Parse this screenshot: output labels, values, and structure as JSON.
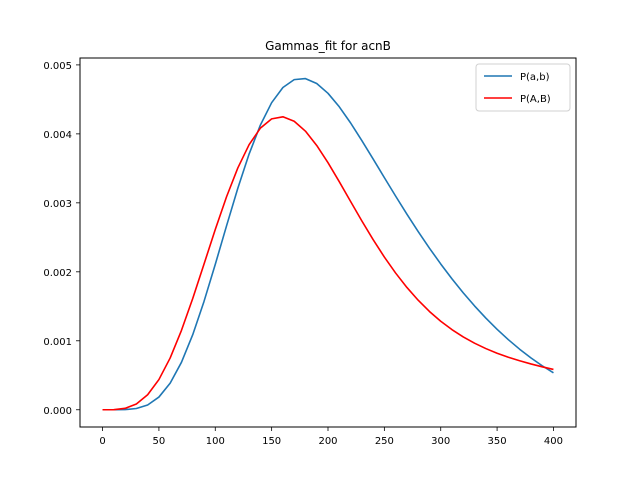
{
  "chart_data": {
    "type": "line",
    "title": "Gammas_fit for acnB",
    "xlabel": "",
    "ylabel": "",
    "xlim": [
      -20,
      420
    ],
    "ylim": [
      -0.00025,
      0.0051
    ],
    "x_ticks": [
      0,
      50,
      100,
      150,
      200,
      250,
      300,
      350,
      400
    ],
    "x_tick_labels": [
      "0",
      "50",
      "100",
      "150",
      "200",
      "250",
      "300",
      "350",
      "400"
    ],
    "y_ticks": [
      0.0,
      0.001,
      0.002,
      0.003,
      0.004,
      0.005
    ],
    "y_tick_labels": [
      "0.000",
      "0.001",
      "0.002",
      "0.003",
      "0.004",
      "0.005"
    ],
    "grid": false,
    "legend_position": "top-right",
    "x": [
      0,
      10,
      20,
      30,
      40,
      50,
      60,
      70,
      80,
      90,
      100,
      110,
      120,
      130,
      140,
      150,
      160,
      170,
      180,
      190,
      200,
      210,
      220,
      230,
      240,
      250,
      260,
      270,
      280,
      290,
      300,
      310,
      320,
      330,
      340,
      350,
      360,
      370,
      380,
      390,
      400
    ],
    "series": [
      {
        "name": "P(a,b)",
        "color": "#1f77b4",
        "values": [
          0.0,
          1e-07,
          2.3e-06,
          1.58e-05,
          6e-05,
          0.0001593,
          0.0003339,
          0.0005951,
          0.0009411,
          0.0013584,
          0.0018234,
          0.0023071,
          0.0027781,
          0.003207,
          0.0035703,
          0.0038513,
          0.0040417,
          0.0041404,
          0.0041535,
          0.0040917,
          0.003969,
          0.0037998,
          0.0035982,
          0.0033768,
          0.0031454,
          0.0029113,
          0.0026794,
          0.0024533,
          0.0022351,
          0.0020266,
          0.0018286,
          0.0016418,
          0.0014664,
          0.0013025,
          0.00115,
          0.0010089,
          0.0008788,
          0.0007595,
          0.0006507,
          0.0005521,
          0.0004633
        ],
        "scale": 1.156
      },
      {
        "name": "P(A,B)",
        "color": "#ff0000",
        "values": [
          0.0,
          1.5e-06,
          2.12e-05,
          8.7e-05,
          0.000226,
          0.0004546,
          0.0007801,
          0.0011944,
          0.001675,
          0.0021923,
          0.0027146,
          0.0032072,
          0.0036409,
          0.0039905,
          0.0042394,
          0.0043791,
          0.0044109,
          0.0043442,
          0.0041941,
          0.0039794,
          0.0037196,
          0.0034333,
          0.0031371,
          0.0028437,
          0.002562,
          0.0022988,
          0.002058,
          0.0018413,
          0.0016489,
          0.00148,
          0.0013329,
          0.0012058,
          0.0010963,
          0.0010022,
          0.0009213,
          0.0008514,
          0.0007906,
          0.0007372,
          0.0006896,
          0.0006467,
          0.0006073
        ],
        "scale": 0.963
      }
    ]
  }
}
